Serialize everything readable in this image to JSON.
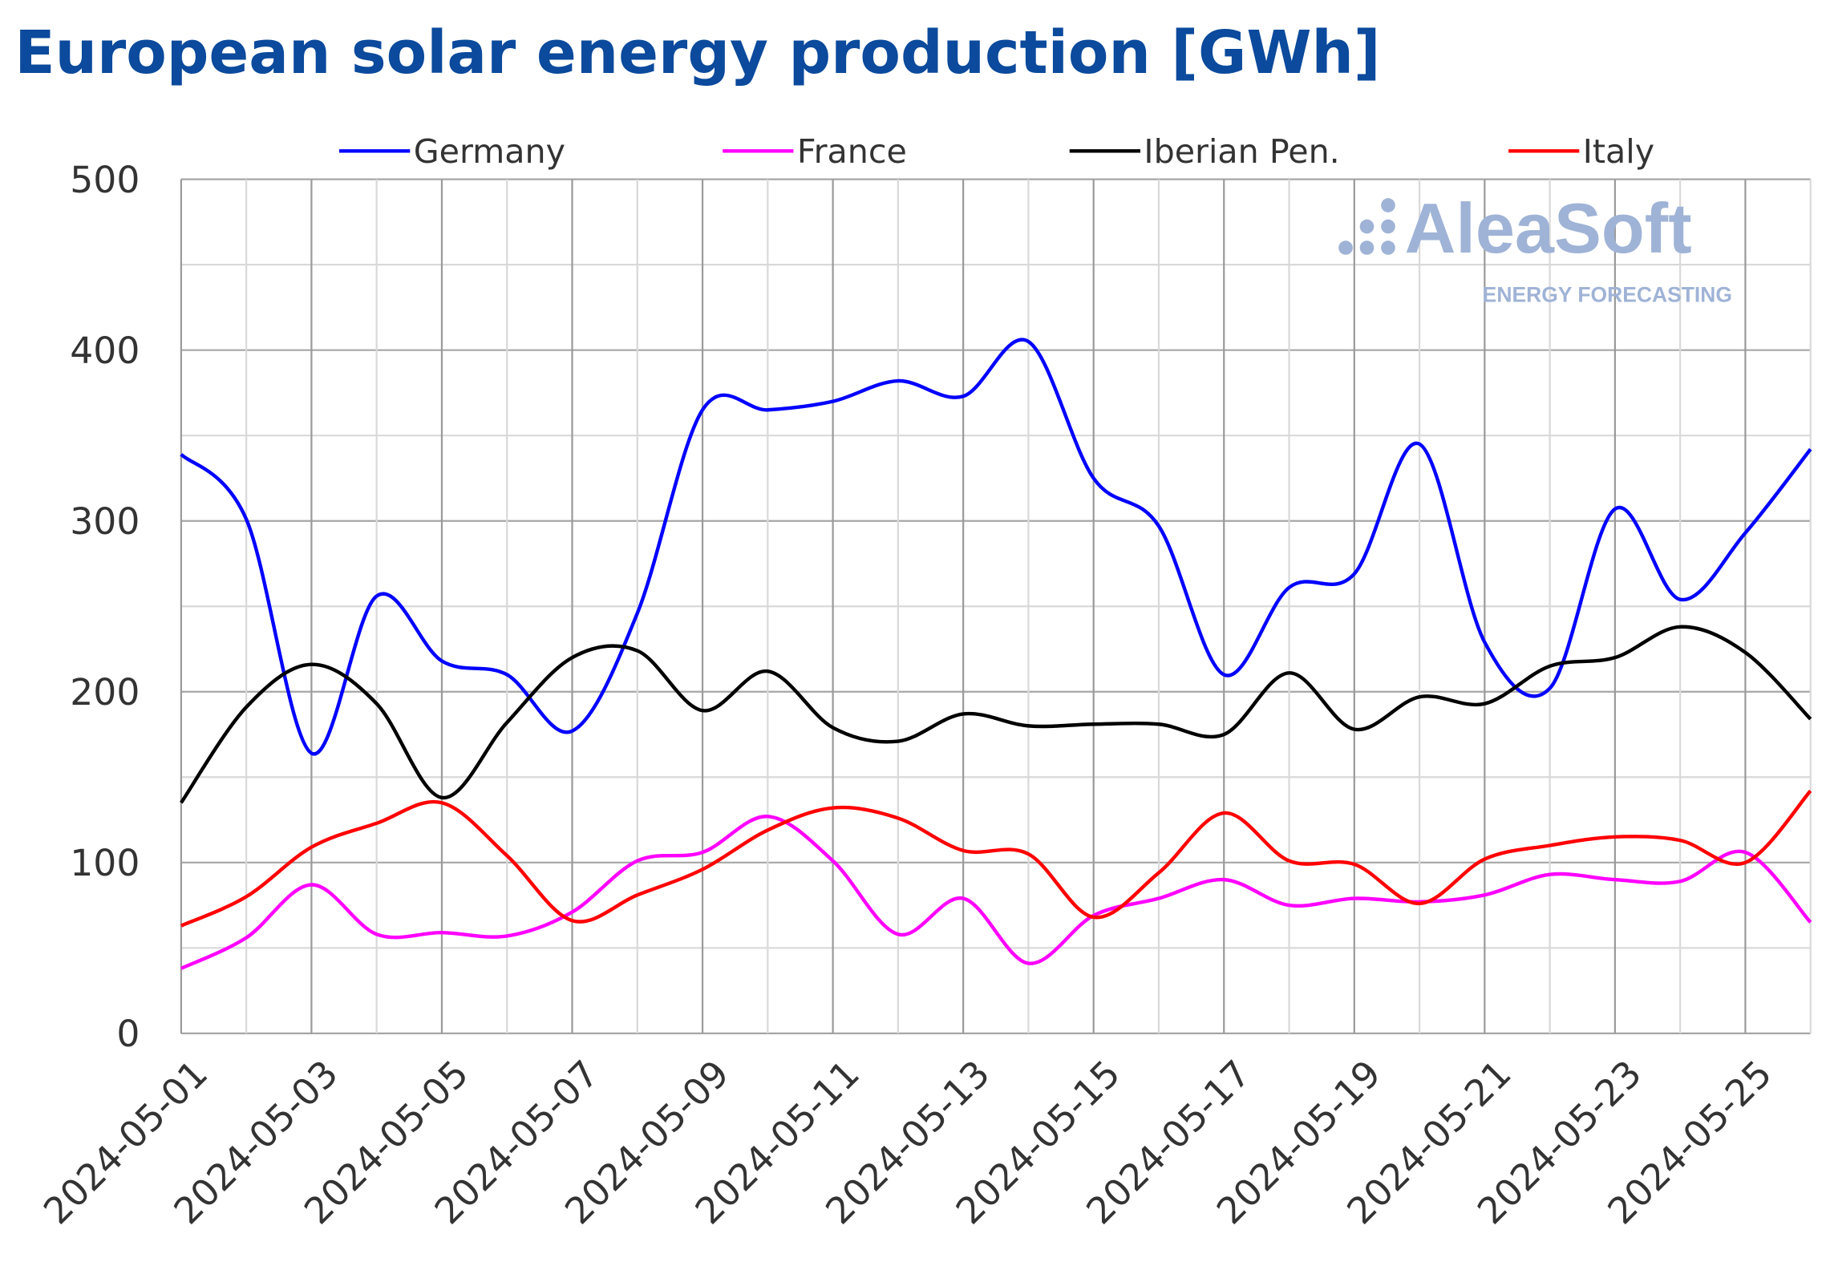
{
  "chart_data": {
    "type": "line",
    "title": "European solar energy production [GWh]",
    "xlabel": "",
    "ylabel": "",
    "ylim": [
      0,
      500
    ],
    "yticks": [
      0,
      100,
      200,
      300,
      400,
      500
    ],
    "grid": true,
    "legend_position": "top",
    "x": [
      "2024-05-01",
      "2024-05-02",
      "2024-05-03",
      "2024-05-04",
      "2024-05-05",
      "2024-05-06",
      "2024-05-07",
      "2024-05-08",
      "2024-05-09",
      "2024-05-10",
      "2024-05-11",
      "2024-05-12",
      "2024-05-13",
      "2024-05-14",
      "2024-05-15",
      "2024-05-16",
      "2024-05-17",
      "2024-05-18",
      "2024-05-19",
      "2024-05-20",
      "2024-05-21",
      "2024-05-22",
      "2024-05-23",
      "2024-05-24",
      "2024-05-25",
      "2024-05-26"
    ],
    "xtick_labels": [
      "2024-05-01",
      "2024-05-03",
      "2024-05-05",
      "2024-05-07",
      "2024-05-09",
      "2024-05-11",
      "2024-05-13",
      "2024-05-15",
      "2024-05-17",
      "2024-05-19",
      "2024-05-21",
      "2024-05-23",
      "2024-05-25"
    ],
    "series": [
      {
        "name": "Germany",
        "color": "#0000ff",
        "values": [
          339,
          301,
          164,
          256,
          218,
          210,
          177,
          246,
          365,
          365,
          370,
          382,
          373,
          405,
          325,
          297,
          210,
          261,
          269,
          345,
          229,
          202,
          307,
          254,
          293,
          342
        ]
      },
      {
        "name": "France",
        "color": "#ff00ff",
        "values": [
          38,
          56,
          87,
          58,
          59,
          57,
          71,
          101,
          106,
          127,
          101,
          58,
          79,
          41,
          69,
          79,
          90,
          75,
          79,
          77,
          81,
          93,
          90,
          89,
          106,
          65
        ]
      },
      {
        "name": "Iberian Pen.",
        "color": "#000000",
        "values": [
          135,
          191,
          216,
          193,
          138,
          182,
          220,
          224,
          189,
          212,
          179,
          171,
          187,
          180,
          181,
          181,
          175,
          211,
          178,
          197,
          193,
          215,
          220,
          238,
          223,
          184
        ]
      },
      {
        "name": "Italy",
        "color": "#ff0000",
        "values": [
          63,
          80,
          109,
          123,
          135,
          104,
          66,
          81,
          96,
          119,
          132,
          126,
          107,
          105,
          68,
          94,
          129,
          101,
          99,
          76,
          102,
          110,
          115,
          113,
          100,
          142
        ]
      }
    ]
  },
  "logo": {
    "name": "AleaSoft",
    "tagline": "ENERGY FORECASTING",
    "color": "#9fb3d6"
  }
}
